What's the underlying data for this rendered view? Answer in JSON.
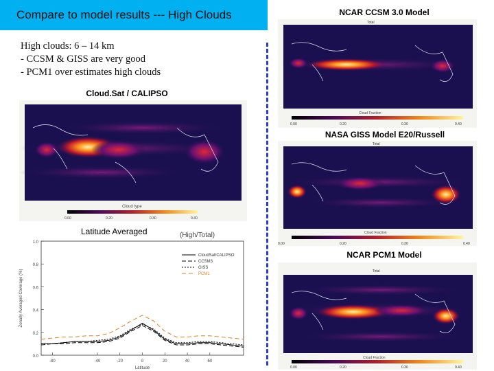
{
  "slide": {
    "title": "Compare to model results --- High Clouds",
    "bullets": [
      "High clouds: 6 – 14 km",
      "- CCSM & GISS are very good",
      "- PCM1 over estimates high clouds"
    ]
  },
  "maps": {
    "cloudsat": {
      "label": "Cloud.Sat / CALIPSO",
      "inner_title": "",
      "colorbar_label": "Cloud type",
      "ticks": [
        "0.00",
        "0.20",
        "0.30",
        "0.40"
      ]
    },
    "ccsm": {
      "label": "NCAR CCSM 3.0 Model",
      "inner_title": "Total",
      "colorbar_label": "Cloud Fraction",
      "ticks": [
        "0.00",
        "0.20",
        "0.30",
        "0.40"
      ]
    },
    "giss": {
      "label": "NASA GISS Model E20/Russell",
      "inner_title": "Total",
      "colorbar_label": "Cloud Fraction",
      "ticks": [
        "0.00",
        "0.20",
        "0.30",
        "0.40"
      ]
    },
    "pcm1": {
      "label": "NCAR PCM1 Model",
      "inner_title": "Total",
      "colorbar_label": "Cloud Fraction",
      "ticks": [
        "0.00",
        "0.20",
        "0.30",
        "0.40"
      ]
    }
  },
  "plot": {
    "label": "Latitude Averaged",
    "suffix_label": "(High/Total)"
  },
  "chart_data": {
    "type": "line",
    "title": "Latitude Averaged",
    "xlabel": "Latitude",
    "ylabel": "Zonally Averaged Coverage (%)",
    "x": [
      -90,
      -80,
      -70,
      -60,
      -50,
      -40,
      -30,
      -20,
      -10,
      0,
      10,
      20,
      30,
      40,
      50,
      60,
      70,
      80,
      90
    ],
    "xlim": [
      -90,
      90
    ],
    "ylim": [
      0,
      1.0
    ],
    "xticks": [
      "-80",
      "-40",
      "-20",
      "0",
      "20",
      "40",
      "60"
    ],
    "yticks": [
      "0.0",
      "0.2",
      "0.4",
      "0.6",
      "0.8",
      "1.0"
    ],
    "series": [
      {
        "name": "CloudSat/CALIPSO",
        "color": "#000000",
        "dash": "",
        "values": [
          0.1,
          0.1,
          0.11,
          0.12,
          0.12,
          0.12,
          0.13,
          0.16,
          0.22,
          0.28,
          0.22,
          0.14,
          0.1,
          0.1,
          0.11,
          0.11,
          0.1,
          0.09,
          0.08
        ]
      },
      {
        "name": "CCSM3",
        "color": "#000000",
        "dash": "6,3",
        "values": [
          0.09,
          0.1,
          0.1,
          0.11,
          0.11,
          0.11,
          0.12,
          0.15,
          0.21,
          0.26,
          0.21,
          0.13,
          0.09,
          0.09,
          0.1,
          0.1,
          0.09,
          0.08,
          0.07
        ]
      },
      {
        "name": "GISS",
        "color": "#000000",
        "dash": "2,2",
        "values": [
          0.1,
          0.1,
          0.11,
          0.12,
          0.12,
          0.13,
          0.14,
          0.17,
          0.23,
          0.27,
          0.23,
          0.15,
          0.11,
          0.11,
          0.12,
          0.12,
          0.11,
          0.1,
          0.09
        ]
      },
      {
        "name": "PCM1",
        "color": "#e08020",
        "dash": "6,4",
        "values": [
          0.14,
          0.15,
          0.16,
          0.16,
          0.17,
          0.17,
          0.19,
          0.24,
          0.3,
          0.35,
          0.3,
          0.21,
          0.16,
          0.16,
          0.17,
          0.17,
          0.16,
          0.15,
          0.14
        ]
      }
    ]
  }
}
